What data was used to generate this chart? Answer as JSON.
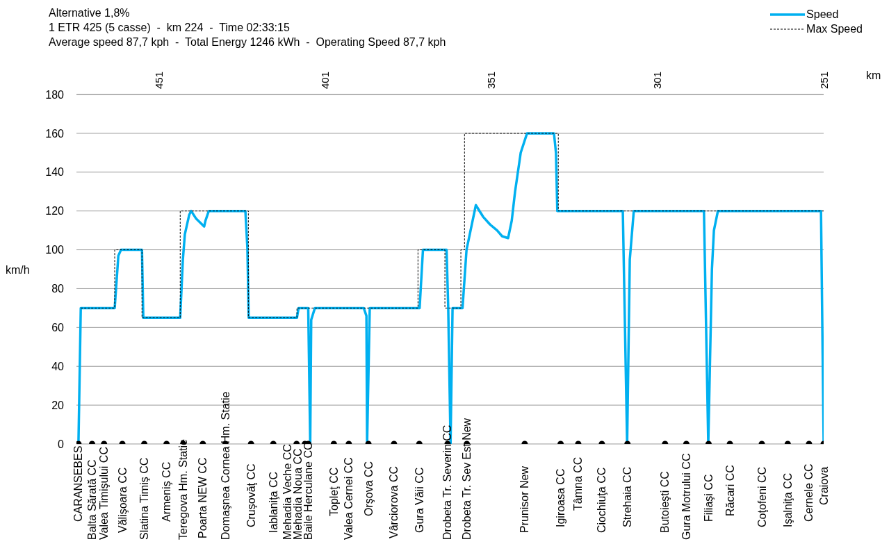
{
  "chart_data": {
    "type": "line",
    "title": "Alternative 1,8%",
    "subtitle": "1 ETR 425 (5 casse)  -  km 224  -  Time 02:33:15\nAverage speed 87,7 kph  -  Total Energy 1246 kWh  -  Operating Speed 87,7 kph",
    "xlabel": "km",
    "ylabel": "km/h",
    "xlim": [
      475.7,
      251
    ],
    "xticks": [
      451,
      401,
      351,
      301,
      251
    ],
    "ylim": [
      0,
      180
    ],
    "yticks": [
      0,
      20,
      40,
      60,
      80,
      100,
      120,
      140,
      160,
      180
    ],
    "grid": "y",
    "legend": "top right",
    "series": [
      {
        "name": "Speed",
        "color": "#00b0f0",
        "marker": "none",
        "line_style": "solid",
        "x": [
          475.1,
          474.4,
          464.2,
          463.1,
          462.3,
          456.0,
          455.6,
          444.5,
          443.7,
          443.1,
          441.8,
          441.2,
          439.7,
          437.3,
          436.9,
          435.9,
          424.9,
          424.3,
          423.9,
          409.4,
          408.9,
          406.0,
          405.4,
          405.1,
          404.0,
          389.3,
          388.5,
          388.3,
          387.5,
          372.5,
          371.5,
          364.4,
          363.9,
          363.2,
          362.6,
          359.6,
          358.4,
          355.6,
          353.4,
          351.3,
          349.2,
          347.7,
          345.9,
          344.8,
          343.8,
          342.1,
          340.2,
          332.1,
          331.5,
          331.1,
          311.4,
          310.1,
          309.3,
          308.1,
          287.0,
          285.7,
          284.6,
          284.0,
          282.8,
          251.8,
          251.0
        ],
        "values": [
          0,
          70,
          70,
          97,
          100,
          100,
          65,
          65,
          95,
          108,
          118,
          120,
          116,
          112,
          115,
          120,
          120,
          101,
          65,
          65,
          70,
          70,
          0,
          64,
          70,
          70,
          66,
          0,
          70,
          70,
          100,
          100,
          70,
          0,
          70,
          70,
          100,
          123,
          117,
          113,
          110,
          107,
          106,
          115,
          130,
          150,
          160,
          160,
          150,
          120,
          120,
          0,
          95,
          120,
          120,
          0,
          90,
          110,
          120,
          120,
          0
        ]
      },
      {
        "name": "Max Speed",
        "type": "step",
        "color": "#000000",
        "marker": "none",
        "line_style": "dashed",
        "x": [
          474.4,
          464.2,
          456.0,
          444.5,
          424.0,
          409.4,
          373.0,
          364.9,
          360.1,
          359.0,
          330.8,
          251.0
        ],
        "values": [
          70,
          100,
          65,
          120,
          65,
          70,
          100,
          70,
          100,
          160,
          120,
          120
        ]
      },
      {
        "type": "scatter",
        "color": "#000000",
        "marker": "circle",
        "x": [
          475.1,
          471.0,
          467.4,
          461.9,
          455.3,
          448.6,
          443.6,
          437.7,
          430.9,
          423.2,
          416.5,
          409.5,
          407.0,
          406.0,
          398.3,
          393.8,
          387.9,
          380.2,
          372.6,
          364.1,
          358.3,
          340.9,
          330.1,
          324.8,
          317.7,
          310.0,
          298.7,
          292.3,
          285.6,
          279.2,
          269.6,
          261.8,
          255.4,
          251.0
        ],
        "values": [
          0,
          0,
          0,
          0,
          0,
          0,
          0,
          0,
          0,
          0,
          0,
          0,
          0,
          0,
          0,
          0,
          0,
          0,
          0,
          0,
          0,
          0,
          0,
          0,
          0,
          0,
          0,
          0,
          0,
          0,
          0,
          0,
          0,
          0
        ]
      }
    ],
    "annotations": [
      {
        "text": "CARANSEBES",
        "x": 475.1,
        "y": 0
      },
      {
        "text": "Balta Sărată CC",
        "x": 471.0,
        "y": 0
      },
      {
        "text": "Valea Timişului CC",
        "x": 467.4,
        "y": 0
      },
      {
        "text": "Vălişoara CC",
        "x": 461.9,
        "y": 0
      },
      {
        "text": "Slatina Timiş CC",
        "x": 455.3,
        "y": 0
      },
      {
        "text": "Armeniş CC",
        "x": 448.6,
        "y": 0
      },
      {
        "text": "Teregova Hm. Statie",
        "x": 443.6,
        "y": 0
      },
      {
        "text": "Poarta NEW CC",
        "x": 437.7,
        "y": 0
      },
      {
        "text": "Domaşnea Cornea Hm. Statie",
        "x": 430.9,
        "y": 0
      },
      {
        "text": "Cruşovăţ CC",
        "x": 423.2,
        "y": 0
      },
      {
        "text": "Iablaniţa CC",
        "x": 416.5,
        "y": 0
      },
      {
        "text": "Mehadia Veche CC",
        "x": 409.5,
        "y": 0
      },
      {
        "text": "Mehadia Noua CC",
        "x": 407.0,
        "y": 0
      },
      {
        "text": "Baile Herculane CC",
        "x": 406.0,
        "y": 0
      },
      {
        "text": "Topleţ CC",
        "x": 398.3,
        "y": 0
      },
      {
        "text": "Valea Cernei CC",
        "x": 393.8,
        "y": 0
      },
      {
        "text": "Orşova CC",
        "x": 387.9,
        "y": 0
      },
      {
        "text": "Vârciorova CC",
        "x": 380.2,
        "y": 0
      },
      {
        "text": "Gura Văii CC",
        "x": 372.6,
        "y": 0
      },
      {
        "text": "Drobeta Tr. Severin CC",
        "x": 364.1,
        "y": 0
      },
      {
        "text": "Drobeta Tr. Sev Est New",
        "x": 358.3,
        "y": 0
      },
      {
        "text": "Prunisor New",
        "x": 340.9,
        "y": 0
      },
      {
        "text": "Igiroasa CC",
        "x": 330.1,
        "y": 0
      },
      {
        "text": "Tâmna CC",
        "x": 324.8,
        "y": 0
      },
      {
        "text": "Ciochiuţa CC",
        "x": 317.7,
        "y": 0
      },
      {
        "text": "Strehaia CC",
        "x": 310.0,
        "y": 0
      },
      {
        "text": "Butoieşti CC",
        "x": 298.7,
        "y": 0
      },
      {
        "text": "Gura Motrului  CC",
        "x": 292.3,
        "y": 0
      },
      {
        "text": "Filiaşi CC",
        "x": 285.6,
        "y": 0
      },
      {
        "text": "Răcari CC",
        "x": 279.2,
        "y": 0
      },
      {
        "text": "Coţofeni CC",
        "x": 269.6,
        "y": 0
      },
      {
        "text": "Işalniţa CC",
        "x": 261.8,
        "y": 0
      },
      {
        "text": "Cernele CC",
        "x": 255.4,
        "y": 0
      },
      {
        "text": "Craiova",
        "x": 251.0,
        "y": 0
      }
    ]
  }
}
